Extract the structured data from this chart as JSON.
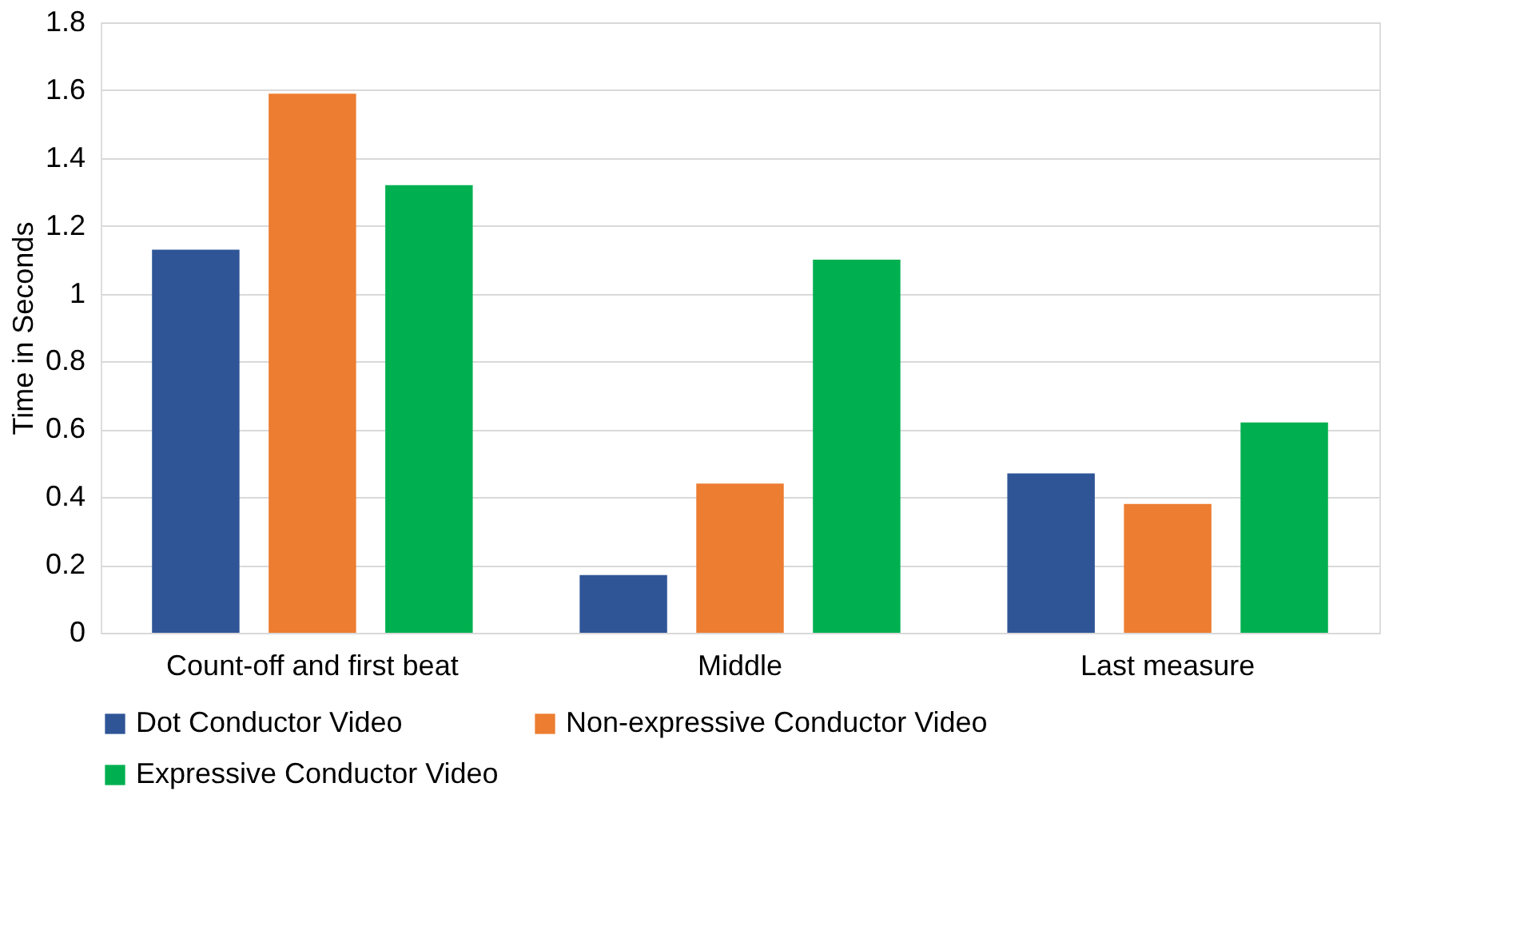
{
  "chart_data": {
    "type": "bar",
    "ylabel": "Time in Seconds",
    "categories": [
      "Count-off and first beat",
      "Middle",
      "Last measure"
    ],
    "series": [
      {
        "name": "Dot Conductor Video",
        "color": "#2f5597",
        "values": [
          1.13,
          0.17,
          0.47
        ]
      },
      {
        "name": "Non-expressive Conductor Video",
        "color": "#ed7d31",
        "values": [
          1.59,
          0.44,
          0.38
        ]
      },
      {
        "name": "Expressive Conductor Video",
        "color": "#00b050",
        "values": [
          1.32,
          1.1,
          0.62
        ]
      }
    ],
    "ylim": [
      0,
      1.8
    ],
    "yticks": [
      0,
      0.2,
      0.4,
      0.6,
      0.8,
      1,
      1.2,
      1.4,
      1.6,
      1.8
    ],
    "grid": "y",
    "legend": "bottom"
  }
}
